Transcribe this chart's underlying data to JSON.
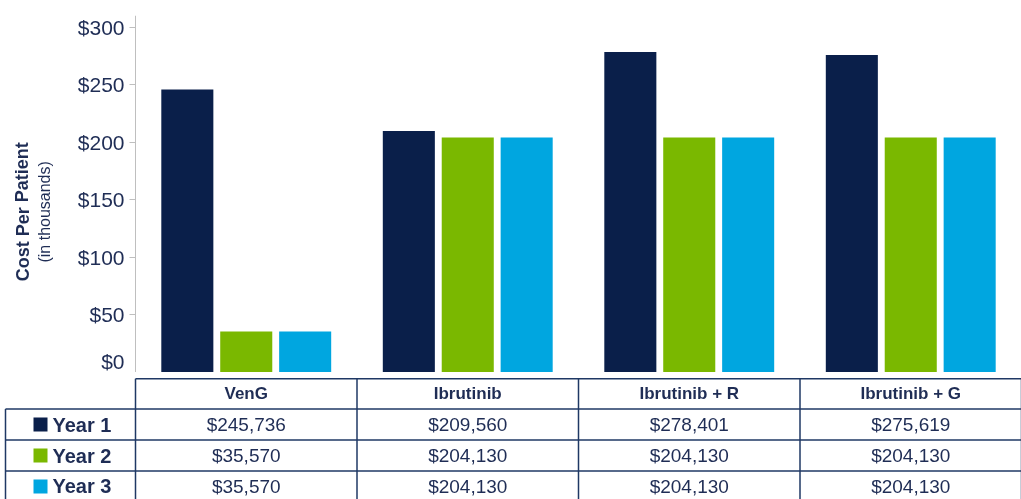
{
  "chart_data": {
    "type": "bar",
    "categories": [
      "VenG",
      "Ibrutinib",
      "Ibrutinib + R",
      "Ibrutinib + G"
    ],
    "ylabel": "Cost Per Patient\n(in thousands)",
    "ylim": [
      0,
      310
    ],
    "yticks": [
      {
        "value": 0,
        "label": "$0"
      },
      {
        "value": 50,
        "label": "$50"
      },
      {
        "value": 100,
        "label": "$100"
      },
      {
        "value": 150,
        "label": "$150"
      },
      {
        "value": 200,
        "label": "$200"
      },
      {
        "value": 250,
        "label": "$250"
      },
      {
        "value": 300,
        "label": "$300"
      }
    ],
    "grid": false,
    "legend": "bottom",
    "annotations": [
      "$245,736",
      "$209,560",
      "$278,401",
      "$275,619",
      "$35,570",
      "$204,130",
      "$204,130",
      "$204,130",
      "$35,570",
      "$204,130",
      "$204,130",
      "$204,130"
    ],
    "series": [
      {
        "name": "Year 1",
        "color": "#0a1f4a",
        "values": [
          245.7,
          209.6,
          278.4,
          275.6
        ]
      },
      {
        "name": "Year 2",
        "color": "#7ab800",
        "values": [
          35.6,
          204.1,
          204.1,
          204.1
        ]
      },
      {
        "name": "Year 3",
        "color": "#00a6e0",
        "values": [
          35.6,
          204.1,
          204.1,
          204.1
        ]
      }
    ]
  }
}
